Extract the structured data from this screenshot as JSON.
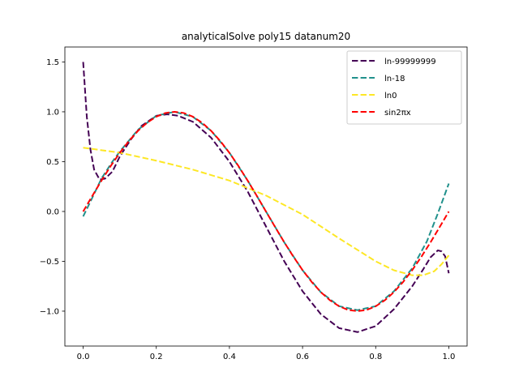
{
  "chart_data": {
    "type": "line",
    "title": "analyticalSolve poly15 datanum20",
    "xlabel": "",
    "ylabel": "",
    "xlim": [
      -0.05,
      1.05
    ],
    "ylim": [
      -1.35,
      1.65
    ],
    "xticks": [
      0.0,
      0.2,
      0.4,
      0.6,
      0.8,
      1.0
    ],
    "xtick_labels": [
      "0.0",
      "0.2",
      "0.4",
      "0.6",
      "0.8",
      "1.0"
    ],
    "yticks": [
      -1.0,
      -0.5,
      0.0,
      0.5,
      1.0,
      1.5
    ],
    "ytick_labels": [
      "−1.0",
      "−0.5",
      "0.0",
      "0.5",
      "1.0",
      "1.5"
    ],
    "grid": false,
    "legend_position": "top-right",
    "series": [
      {
        "name": "ln-99999999",
        "color": "#440154",
        "dash": "dashed",
        "x": [
          0.0,
          0.01,
          0.02,
          0.03,
          0.045,
          0.06,
          0.08,
          0.1,
          0.13,
          0.16,
          0.2,
          0.23,
          0.26,
          0.3,
          0.35,
          0.4,
          0.45,
          0.5,
          0.55,
          0.6,
          0.65,
          0.7,
          0.75,
          0.8,
          0.85,
          0.9,
          0.93,
          0.95,
          0.97,
          0.98,
          0.99,
          1.0
        ],
        "y": [
          1.5,
          0.95,
          0.62,
          0.42,
          0.32,
          0.33,
          0.4,
          0.55,
          0.72,
          0.86,
          0.96,
          0.975,
          0.96,
          0.9,
          0.74,
          0.5,
          0.2,
          -0.15,
          -0.5,
          -0.8,
          -1.03,
          -1.17,
          -1.21,
          -1.15,
          -0.98,
          -0.75,
          -0.58,
          -0.46,
          -0.39,
          -0.4,
          -0.45,
          -0.62
        ]
      },
      {
        "name": "ln-18",
        "color": "#21918c",
        "dash": "dashed",
        "x": [
          0.0,
          0.02,
          0.05,
          0.08,
          0.1,
          0.15,
          0.2,
          0.25,
          0.3,
          0.35,
          0.4,
          0.45,
          0.5,
          0.55,
          0.6,
          0.65,
          0.7,
          0.75,
          0.8,
          0.85,
          0.9,
          0.94,
          0.97,
          1.0
        ],
        "y": [
          -0.05,
          0.1,
          0.33,
          0.5,
          0.6,
          0.82,
          0.96,
          1.0,
          0.95,
          0.81,
          0.59,
          0.31,
          0.0,
          -0.31,
          -0.59,
          -0.81,
          -0.95,
          -0.99,
          -0.95,
          -0.8,
          -0.57,
          -0.3,
          -0.02,
          0.28
        ]
      },
      {
        "name": "ln0",
        "color": "#fde725",
        "dash": "dashed",
        "x": [
          0.0,
          0.1,
          0.2,
          0.3,
          0.4,
          0.5,
          0.6,
          0.7,
          0.8,
          0.85,
          0.9,
          0.93,
          0.96,
          0.98,
          1.0
        ],
        "y": [
          0.64,
          0.59,
          0.51,
          0.42,
          0.31,
          0.16,
          -0.03,
          -0.27,
          -0.5,
          -0.59,
          -0.64,
          -0.64,
          -0.6,
          -0.53,
          -0.44
        ]
      },
      {
        "name": "sin2πx",
        "color": "#ff0000",
        "dash": "dashed",
        "x": [
          0.0,
          0.025,
          0.05,
          0.075,
          0.1,
          0.125,
          0.15,
          0.175,
          0.2,
          0.225,
          0.25,
          0.275,
          0.3,
          0.325,
          0.35,
          0.375,
          0.4,
          0.425,
          0.45,
          0.475,
          0.5,
          0.525,
          0.55,
          0.575,
          0.6,
          0.625,
          0.65,
          0.675,
          0.7,
          0.725,
          0.75,
          0.775,
          0.8,
          0.825,
          0.85,
          0.875,
          0.9,
          0.925,
          0.95,
          0.975,
          1.0
        ],
        "y": [
          0.0,
          0.156,
          0.309,
          0.454,
          0.588,
          0.707,
          0.809,
          0.891,
          0.951,
          0.988,
          1.0,
          0.988,
          0.951,
          0.891,
          0.809,
          0.707,
          0.588,
          0.454,
          0.309,
          0.156,
          0.0,
          -0.156,
          -0.309,
          -0.454,
          -0.588,
          -0.707,
          -0.809,
          -0.891,
          -0.951,
          -0.988,
          -1.0,
          -0.988,
          -0.951,
          -0.891,
          -0.809,
          -0.707,
          -0.588,
          -0.454,
          -0.309,
          -0.156,
          0.0
        ]
      }
    ]
  }
}
